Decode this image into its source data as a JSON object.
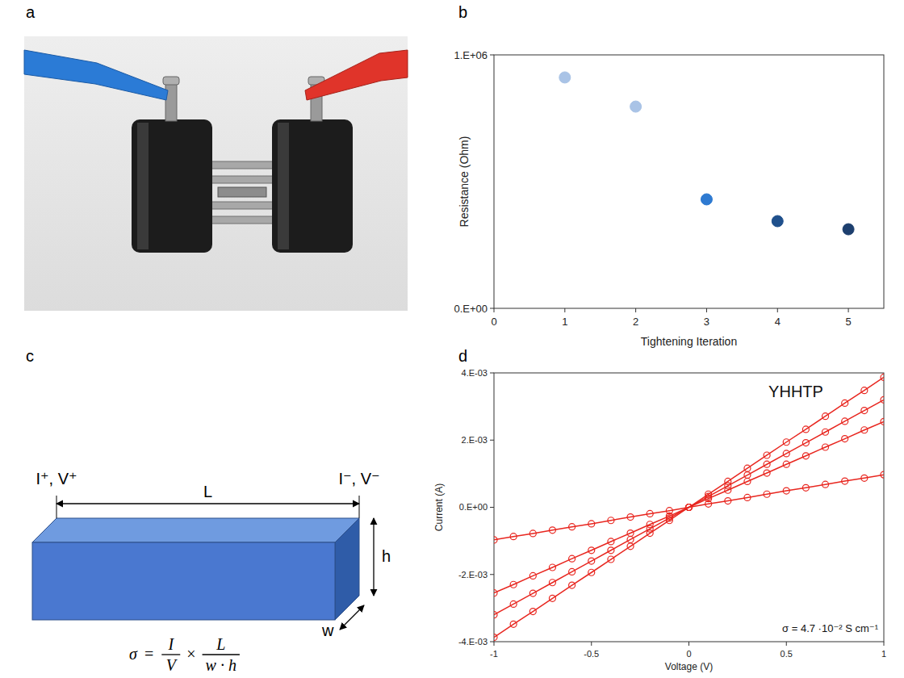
{
  "panel_labels": [
    "a",
    "b",
    "c",
    "d"
  ],
  "chart_data": [
    {
      "type": "scatter",
      "x_label": "Tightening Iteration",
      "y_label": "Resistance (Ohm)",
      "x": [
        1,
        2,
        3,
        4,
        5
      ],
      "values": [
        911000,
        796000,
        430000,
        344000,
        312000
      ],
      "colors": [
        "#a9c3e6",
        "#a9c3e6",
        "#2e7ad1",
        "#1f508c",
        "#1d3f6e"
      ],
      "marker": "circle",
      "xlim": [
        0,
        5.5
      ],
      "xticks": [
        0,
        1,
        2,
        3,
        4,
        5
      ],
      "ylim": [
        0,
        1000000
      ],
      "yticks": [
        {
          "value": 0,
          "label": "0.E+00"
        },
        {
          "value": 1000000,
          "label": "1.E+06"
        }
      ],
      "grid": false
    },
    {
      "type": "scatter",
      "x_label": "Voltage (V)",
      "y_label": "Current (A)",
      "annotations": [
        {
          "text": "YHHTP"
        },
        {
          "text": "σ = 4.7 ·10⁻² S cm⁻¹"
        }
      ],
      "x": [
        -1,
        -0.9,
        -0.8,
        -0.7,
        -0.6,
        -0.5,
        -0.4,
        -0.3,
        -0.2,
        -0.1,
        0,
        0.1,
        0.2,
        0.3,
        0.4,
        0.5,
        0.6,
        0.7,
        0.8,
        0.9,
        1
      ],
      "series": [
        {
          "color": "#e8261f",
          "marker": "circle-open",
          "line_style": "solid",
          "values": [
            -0.00387,
            -0.00348,
            -0.0031,
            -0.00271,
            -0.00232,
            -0.00194,
            -0.00155,
            -0.00116,
            -0.00077,
            -0.00039,
            0,
            0.00039,
            0.00077,
            0.00116,
            0.00155,
            0.00194,
            0.00232,
            0.00271,
            0.0031,
            0.00348,
            0.00387
          ]
        },
        {
          "color": "#e8261f",
          "marker": "circle-open",
          "line_style": "solid",
          "values": [
            -0.0032,
            -0.00288,
            -0.00256,
            -0.00224,
            -0.00192,
            -0.0016,
            -0.00128,
            -0.00096,
            -0.00064,
            -0.00032,
            0,
            0.00032,
            0.00064,
            0.00096,
            0.00128,
            0.0016,
            0.00192,
            0.00224,
            0.00256,
            0.00288,
            0.0032
          ]
        },
        {
          "color": "#e8261f",
          "marker": "circle-open",
          "line_style": "solid",
          "values": [
            -0.00255,
            -0.0023,
            -0.00204,
            -0.00179,
            -0.00153,
            -0.00128,
            -0.00102,
            -0.00077,
            -0.00051,
            -0.00026,
            0,
            0.00026,
            0.00051,
            0.00077,
            0.00102,
            0.00128,
            0.00153,
            0.00179,
            0.00204,
            0.0023,
            0.00255
          ]
        },
        {
          "color": "#e8261f",
          "marker": "circle-open",
          "line_style": "solid",
          "values": [
            -0.00097,
            -0.00087,
            -0.00078,
            -0.00068,
            -0.00058,
            -0.00049,
            -0.00039,
            -0.00029,
            -0.00019,
            -0.0001,
            0,
            0.0001,
            0.00019,
            0.00029,
            0.00039,
            0.00049,
            0.00058,
            0.00068,
            0.00078,
            0.00087,
            0.00097
          ]
        }
      ],
      "xlim": [
        -1,
        1
      ],
      "xticks": [
        -1,
        -0.5,
        0,
        0.5,
        1
      ],
      "ylim": [
        -0.004,
        0.004
      ],
      "yticks": [
        {
          "value": -0.004,
          "label": "-4.E-03"
        },
        {
          "value": -0.002,
          "label": "-2.E-03"
        },
        {
          "value": 0,
          "label": "0.E+00"
        },
        {
          "value": 0.002,
          "label": "2.E-03"
        },
        {
          "value": 0.004,
          "label": "4.E-03"
        }
      ],
      "grid": false
    }
  ],
  "diagram": {
    "left_terminal": "I⁺, V⁺",
    "right_terminal": "I⁻, V⁻",
    "length": "L",
    "height": "h",
    "width": "w",
    "formula": {
      "symbol": "σ",
      "equals": "=",
      "fraction_1": {
        "numerator": "I",
        "denominator": "V"
      },
      "times": "×",
      "fraction_2": {
        "numerator": "L",
        "denominator": "w · h"
      }
    }
  }
}
